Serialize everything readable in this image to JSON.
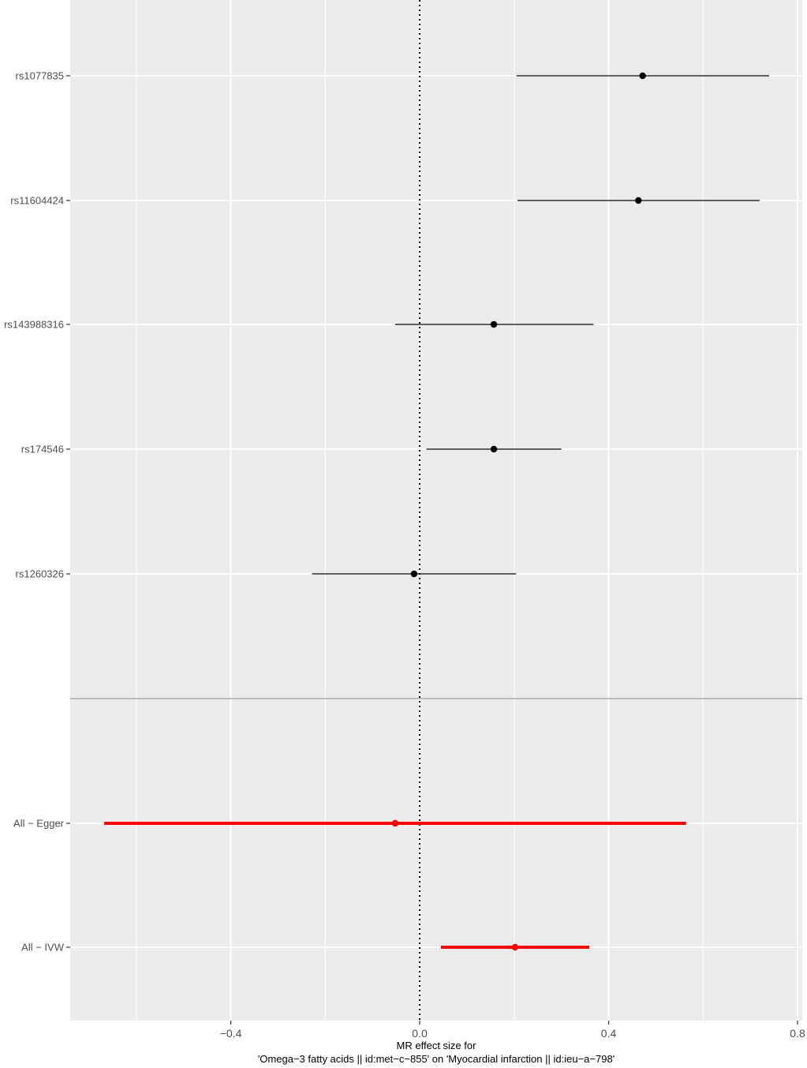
{
  "chart_data": {
    "type": "forest",
    "xlabel_lines": [
      "MR effect size for",
      "'Omega−3 fatty acids || id:met−c−855' on 'Myocardial infarction || id:ieu−a−798'"
    ],
    "xlim": [
      -0.74,
      0.81
    ],
    "x_ticks": [
      -0.4,
      0.0,
      0.4,
      0.8
    ],
    "x_tick_labels": [
      "−0.4",
      "0.0",
      "0.4",
      "0.8"
    ],
    "x_minor_ticks": [
      -0.6,
      -0.2,
      0.2,
      0.6
    ],
    "reference_line": 0,
    "grid": true,
    "panel_background": "#ebebeb",
    "grid_color": "#ffffff",
    "separator_color": "#bdbdbd",
    "snp_rows": [
      {
        "label": "rs1077835",
        "estimate": 0.472,
        "lower": 0.205,
        "upper": 0.74
      },
      {
        "label": "rs11604424",
        "estimate": 0.463,
        "lower": 0.207,
        "upper": 0.72
      },
      {
        "label": "rs143988316",
        "estimate": 0.157,
        "lower": -0.052,
        "upper": 0.368
      },
      {
        "label": "rs174546",
        "estimate": 0.157,
        "lower": 0.014,
        "upper": 0.3
      },
      {
        "label": "rs1260326",
        "estimate": -0.012,
        "lower": -0.228,
        "upper": 0.204
      }
    ],
    "summary_rows": [
      {
        "label": "All − Egger",
        "estimate": -0.052,
        "lower": -0.668,
        "upper": 0.564
      },
      {
        "label": "All − IVW",
        "estimate": 0.202,
        "lower": 0.045,
        "upper": 0.359
      }
    ],
    "snp_color": "#000000",
    "summary_color": "#ff0000"
  }
}
